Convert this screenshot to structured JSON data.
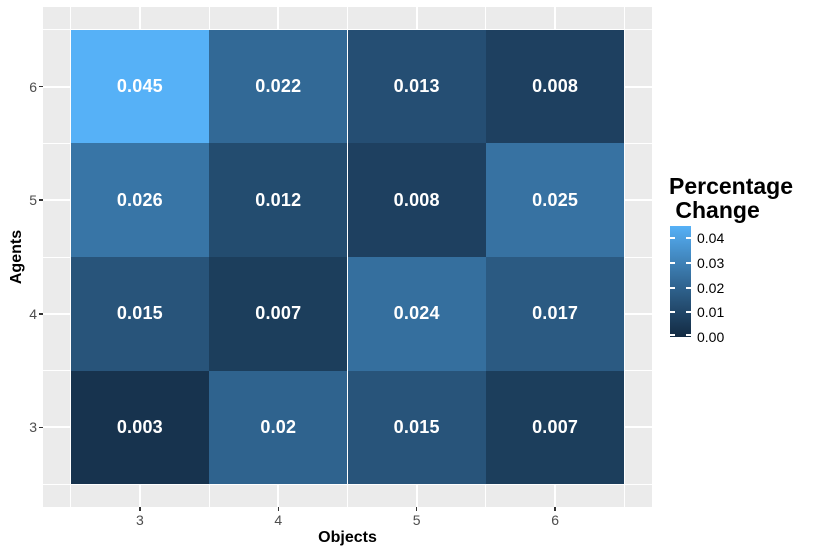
{
  "figure": {
    "background": "#FFFFFF",
    "panel_background": "#EBEBEB",
    "grid_color": "#FFFFFF",
    "tick_color": "#333333",
    "axis_text_color": "#4D4D4D",
    "cell_text_color": "#FFFFFF"
  },
  "chart_data": {
    "type": "heatmap",
    "title": "",
    "xlabel": "Objects",
    "ylabel": "Agents",
    "x_categories": [
      3,
      4,
      5,
      6
    ],
    "y_categories": [
      6,
      5,
      4,
      3
    ],
    "x_tick_labels": [
      "3",
      "4",
      "5",
      "6"
    ],
    "y_tick_labels": [
      "6",
      "5",
      "4",
      "3"
    ],
    "rows": [
      {
        "agents": 6,
        "values": [
          0.045,
          0.022,
          0.013,
          0.008
        ],
        "labels": [
          "0.045",
          "0.022",
          "0.013",
          "0.008"
        ]
      },
      {
        "agents": 5,
        "values": [
          0.026,
          0.012,
          0.008,
          0.025
        ],
        "labels": [
          "0.026",
          "0.012",
          "0.008",
          "0.025"
        ]
      },
      {
        "agents": 4,
        "values": [
          0.015,
          0.007,
          0.024,
          0.017
        ],
        "labels": [
          "0.015",
          "0.007",
          "0.024",
          "0.017"
        ]
      },
      {
        "agents": 3,
        "values": [
          0.003,
          0.02,
          0.015,
          0.007
        ],
        "labels": [
          "0.003",
          "0.02",
          "0.015",
          "0.007"
        ]
      }
    ],
    "color_scale": {
      "low": "#132B43",
      "high": "#56B1F7",
      "limits": [
        0,
        0.045
      ],
      "interpolation": "lab"
    },
    "legend": {
      "title_lines": [
        "Percentage",
        " Change"
      ],
      "position": "right",
      "ticks": [
        {
          "value": 0.04,
          "label": "0.04"
        },
        {
          "value": 0.03,
          "label": "0.03"
        },
        {
          "value": 0.02,
          "label": "0.02"
        },
        {
          "value": 0.01,
          "label": "0.01"
        },
        {
          "value": 0.0,
          "label": "0.00"
        }
      ]
    },
    "axis_ranges": {
      "x": [
        2.3,
        6.7
      ],
      "y": [
        2.3,
        6.7
      ]
    },
    "grid": true
  }
}
